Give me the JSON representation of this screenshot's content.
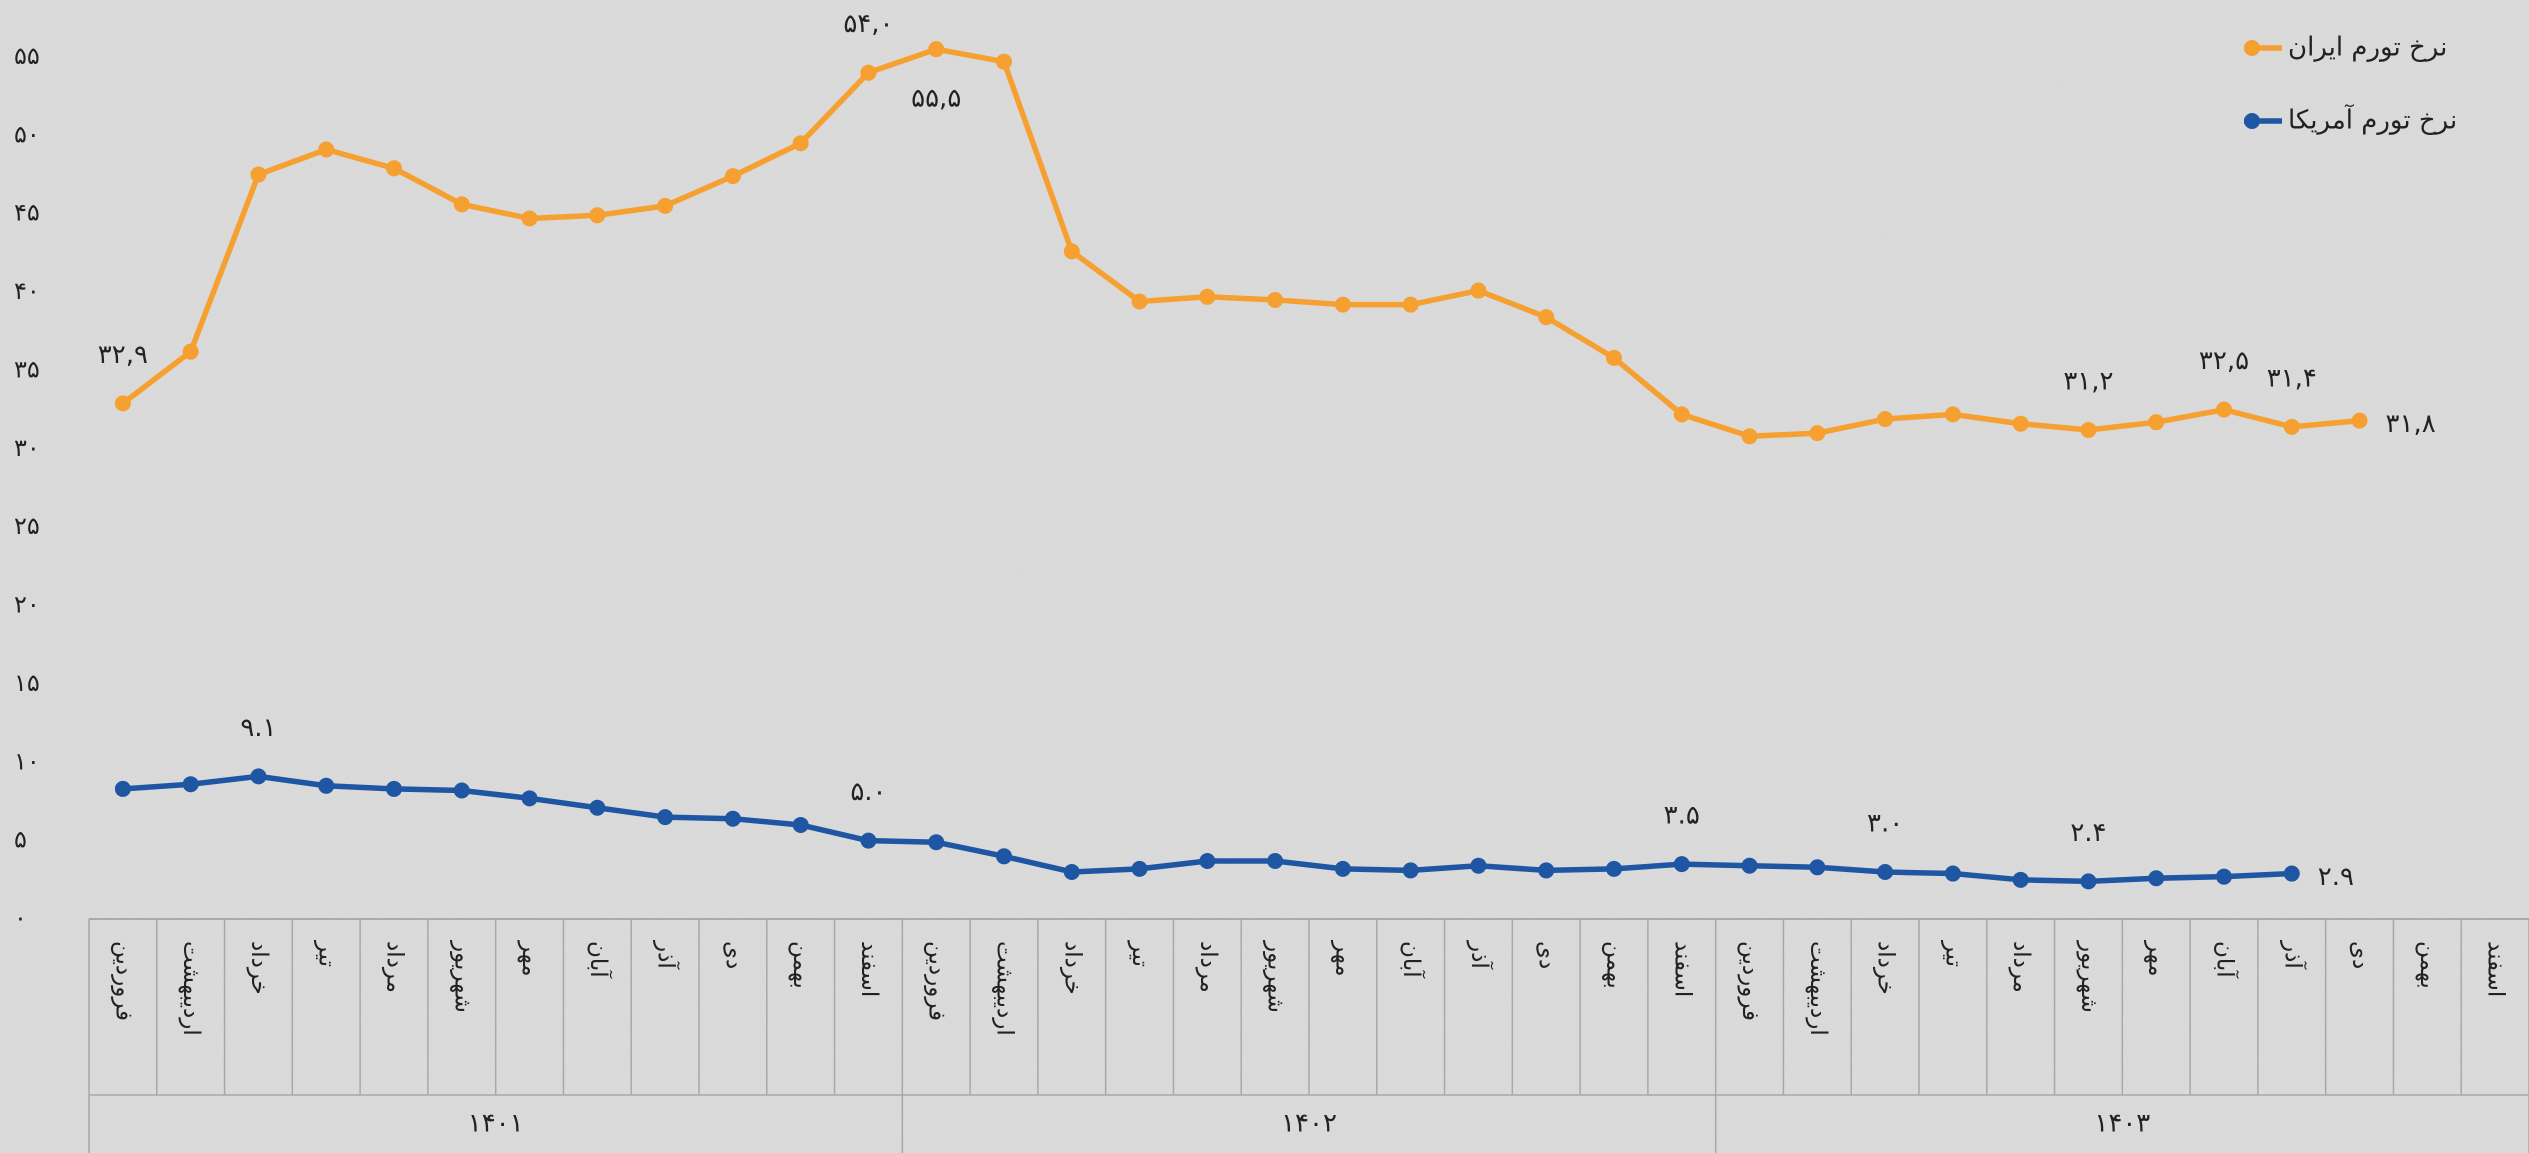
{
  "chart_data": {
    "type": "line",
    "categories": [
      "فروردین",
      "اردیبهشت",
      "خرداد",
      "تیر",
      "مرداد",
      "شهریور",
      "مهر",
      "آبان",
      "آذر",
      "دی",
      "بهمن",
      "اسفند",
      "فروردین",
      "اردیبهشت",
      "خرداد",
      "تیر",
      "مرداد",
      "شهریور",
      "مهر",
      "آبان",
      "آذر",
      "دی",
      "بهمن",
      "اسفند",
      "فروردین",
      "اردیبهشت",
      "خرداد",
      "تیر",
      "مرداد",
      "شهریور",
      "مهر",
      "آبان",
      "آذر",
      "دی",
      "بهمن",
      "اسفند"
    ],
    "category_groups": [
      "۱۴۰۱",
      "۱۴۰۲",
      "۱۴۰۳"
    ],
    "series": [
      {
        "name": "نرخ تورم ایران",
        "color": "#f5a031",
        "values": [
          32.9,
          36.2,
          47.5,
          49.1,
          47.9,
          45.6,
          44.7,
          44.9,
          45.5,
          47.4,
          49.5,
          54.0,
          55.5,
          54.7,
          42.6,
          39.4,
          39.7,
          39.5,
          39.2,
          39.2,
          40.1,
          38.4,
          35.8,
          32.2,
          30.8,
          31.0,
          31.9,
          32.2,
          31.6,
          31.2,
          31.7,
          32.5,
          31.4,
          31.8,
          null,
          null
        ],
        "value_labels": [
          "۳۲,۹",
          null,
          null,
          null,
          null,
          null,
          null,
          null,
          null,
          null,
          null,
          "۵۴,۰",
          "۵۵,۵",
          null,
          null,
          null,
          null,
          null,
          null,
          null,
          null,
          null,
          null,
          null,
          null,
          null,
          null,
          null,
          null,
          "۳۱,۲",
          null,
          "۳۲,۵",
          "۳۱,۴",
          "۳۱,۸",
          null,
          null
        ]
      },
      {
        "name": "نرخ تورم آمریکا",
        "color": "#1f56a3",
        "values": [
          8.3,
          8.6,
          9.1,
          8.5,
          8.3,
          8.2,
          7.7,
          7.1,
          6.5,
          6.4,
          6.0,
          5.0,
          4.9,
          4.0,
          3.0,
          3.2,
          3.7,
          3.7,
          3.2,
          3.1,
          3.4,
          3.1,
          3.2,
          3.5,
          3.4,
          3.3,
          3.0,
          2.9,
          2.5,
          2.4,
          2.6,
          2.7,
          2.9,
          null,
          null,
          null
        ],
        "value_labels": [
          null,
          null,
          "۹.۱",
          null,
          null,
          null,
          null,
          null,
          null,
          null,
          null,
          "۵.۰",
          null,
          null,
          null,
          null,
          null,
          null,
          null,
          null,
          null,
          null,
          null,
          "۳.۵",
          null,
          null,
          "۳.۰",
          null,
          null,
          "۲.۴",
          null,
          null,
          "۲.۹",
          null,
          null,
          null
        ]
      }
    ],
    "ylim": [
      0,
      58
    ],
    "yticks": [
      {
        "value": 0,
        "label": "۰"
      },
      {
        "value": 5,
        "label": "۵"
      },
      {
        "value": 10,
        "label": "۱۰"
      },
      {
        "value": 15,
        "label": "۱۵"
      },
      {
        "value": 20,
        "label": "۲۰"
      },
      {
        "value": 25,
        "label": "۲۵"
      },
      {
        "value": 30,
        "label": "۳۰"
      },
      {
        "value": 35,
        "label": "۳۵"
      },
      {
        "value": 40,
        "label": "۴۰"
      },
      {
        "value": 45,
        "label": "۴۵"
      },
      {
        "value": 50,
        "label": "۵۰"
      },
      {
        "value": 55,
        "label": "۵۵"
      }
    ],
    "grid": false,
    "legend": "top-right"
  }
}
